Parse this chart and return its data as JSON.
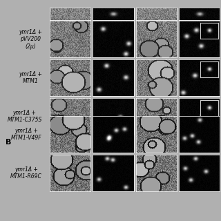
{
  "background_color": "#c8c8c8",
  "panel_bg": "#888888",
  "rows": [
    {
      "label_line1": "ymr1Δ +",
      "label_line2": "pVV200",
      "label_line3": "(2μ)",
      "has_inset": [
        false,
        false,
        false,
        true
      ]
    },
    {
      "label_line1": "ymr1Δ +",
      "label_line2": "MTM1",
      "label_line3": "",
      "has_inset": [
        false,
        false,
        false,
        true
      ]
    },
    {
      "label_line1": "ymr1Δ +",
      "label_line2": "MTM1-C375S",
      "label_line3": "",
      "has_inset": [
        false,
        false,
        false,
        true
      ]
    }
  ],
  "rows_b": [
    {
      "label_line1": "ymr1Δ +",
      "label_line2": "MTM1-V49F",
      "label_line3": "",
      "has_inset": [
        false,
        false,
        false,
        false
      ]
    },
    {
      "label_line1": "ymr1Δ +",
      "label_line2": "MTM1-R69C",
      "label_line3": "",
      "has_inset": [
        false,
        false,
        false,
        false
      ]
    }
  ],
  "section_b_label": "B",
  "label_fontsize": 5.5,
  "section_fontsize": 8,
  "fig_bg": "#b0b0b0",
  "cell_dark": "#1a1a1a",
  "cell_light": "#d0d0d0",
  "grid_color": "#ffffff",
  "inset_color": "#c8c8c8"
}
